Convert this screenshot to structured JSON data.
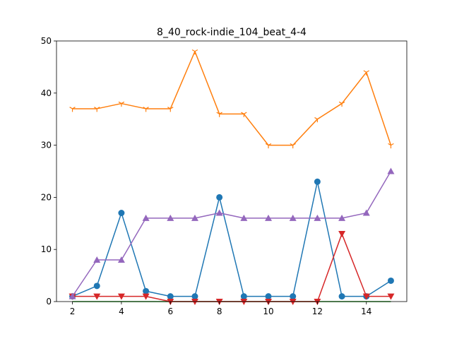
{
  "chart_data": {
    "type": "line",
    "title": "8_40_rock-indie_104_beat_4-4",
    "xlabel": "",
    "ylabel": "",
    "xlim": [
      1.35,
      15.65
    ],
    "ylim": [
      0,
      50
    ],
    "x_ticks": [
      2,
      4,
      6,
      8,
      10,
      12,
      14
    ],
    "y_ticks": [
      0,
      10,
      20,
      30,
      40,
      50
    ],
    "grid": false,
    "x": [
      2,
      3,
      4,
      5,
      6,
      7,
      8,
      9,
      10,
      11,
      12,
      13,
      14,
      15
    ],
    "series": [
      {
        "color": "#1f77b4",
        "marker": "circle",
        "values": [
          1,
          3,
          17,
          2,
          1,
          1,
          20,
          1,
          1,
          1,
          23,
          1,
          1,
          4
        ]
      },
      {
        "color": "#ff7f0e",
        "marker": "tri-down",
        "values": [
          37,
          37,
          38,
          37,
          37,
          48,
          36,
          36,
          30,
          30,
          35,
          38,
          44,
          30
        ]
      },
      {
        "color": "#2ca02c",
        "marker": "none",
        "values": [
          0,
          0,
          0,
          0,
          0,
          0,
          0,
          0,
          0,
          0,
          0,
          0,
          0,
          0
        ]
      },
      {
        "color": "#d62728",
        "marker": "triangle-down",
        "values": [
          1,
          1,
          1,
          1,
          0,
          0,
          0,
          0,
          0,
          0,
          0,
          13,
          1,
          1
        ]
      },
      {
        "color": "#9467bd",
        "marker": "triangle-up",
        "values": [
          1,
          8,
          8,
          16,
          16,
          16,
          17,
          16,
          16,
          16,
          16,
          16,
          17,
          25
        ]
      }
    ]
  }
}
